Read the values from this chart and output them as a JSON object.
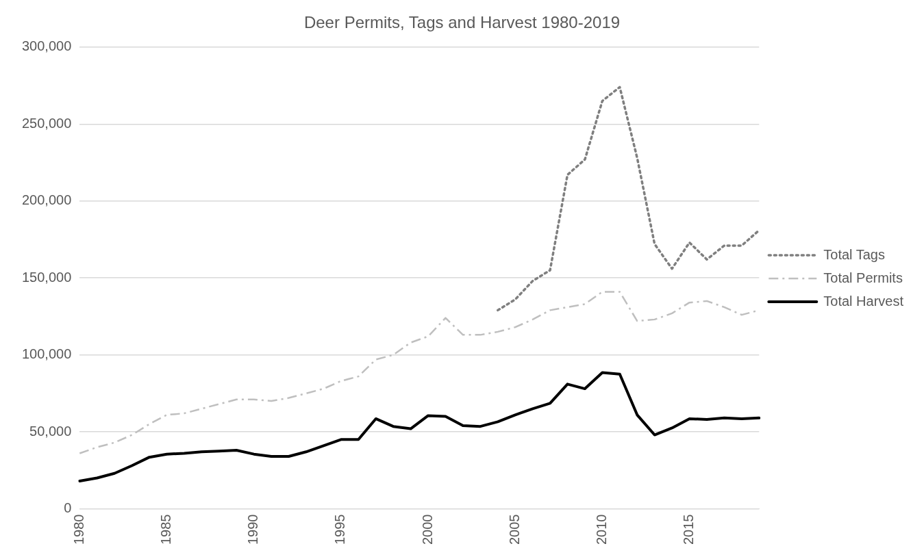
{
  "chart_data": {
    "type": "line",
    "title": "Deer Permits, Tags and Harvest 1980-2019",
    "categories": [
      "1980",
      null,
      null,
      null,
      null,
      "1985",
      null,
      null,
      null,
      null,
      "1990",
      null,
      null,
      null,
      null,
      "1995",
      null,
      null,
      null,
      null,
      "2000",
      null,
      null,
      null,
      null,
      "2005",
      null,
      null,
      null,
      null,
      "2010",
      null,
      null,
      null,
      null,
      "2015",
      null,
      null,
      null,
      null
    ],
    "series": [
      {
        "name": "Total Tags",
        "color": "#7f7f7f",
        "line_style": "dotted",
        "values": [
          null,
          null,
          null,
          null,
          null,
          null,
          null,
          null,
          null,
          null,
          null,
          null,
          null,
          null,
          null,
          null,
          null,
          null,
          null,
          null,
          null,
          null,
          null,
          null,
          129000,
          136000,
          148000,
          155000,
          217000,
          227000,
          265000,
          274000,
          228000,
          172000,
          156000,
          173000,
          162000,
          171000,
          171000,
          181000
        ]
      },
      {
        "name": "Total Permits",
        "color": "#bfbfbf",
        "line_style": "dashed",
        "values": [
          36000,
          40000,
          43000,
          48000,
          55000,
          61000,
          62000,
          65000,
          68000,
          71000,
          71000,
          70000,
          72000,
          75000,
          78000,
          83000,
          86000,
          97000,
          100000,
          108000,
          112000,
          124000,
          113000,
          113000,
          115000,
          118000,
          123000,
          129000,
          131000,
          133000,
          141000,
          141000,
          122000,
          123000,
          127000,
          134000,
          135000,
          131000,
          126000,
          129000
        ]
      },
      {
        "name": "Total Harvest",
        "color": "#000000",
        "line_style": "solid",
        "values": [
          18000,
          20000,
          23000,
          28000,
          33500,
          35500,
          36000,
          37000,
          37500,
          38000,
          35500,
          34000,
          34000,
          37000,
          41000,
          45000,
          45000,
          58500,
          53500,
          52000,
          60500,
          60000,
          54000,
          53500,
          56500,
          61000,
          65000,
          68500,
          81000,
          78000,
          88500,
          87500,
          61000,
          48000,
          52500,
          58500,
          58000,
          59000,
          58500,
          59000
        ]
      }
    ],
    "ylim": [
      0,
      300000
    ],
    "yticks": [
      0,
      {
        "value": 50000,
        "label": "50,000"
      },
      {
        "value": 100000,
        "label": "100,000"
      },
      {
        "value": 150000,
        "label": "150,000"
      },
      {
        "value": 200000,
        "label": "200,000"
      },
      {
        "value": 250000,
        "label": "250,000"
      },
      {
        "value": 300000,
        "label": "300,000"
      }
    ],
    "grid": "y",
    "legend": "right",
    "marker": "none"
  }
}
